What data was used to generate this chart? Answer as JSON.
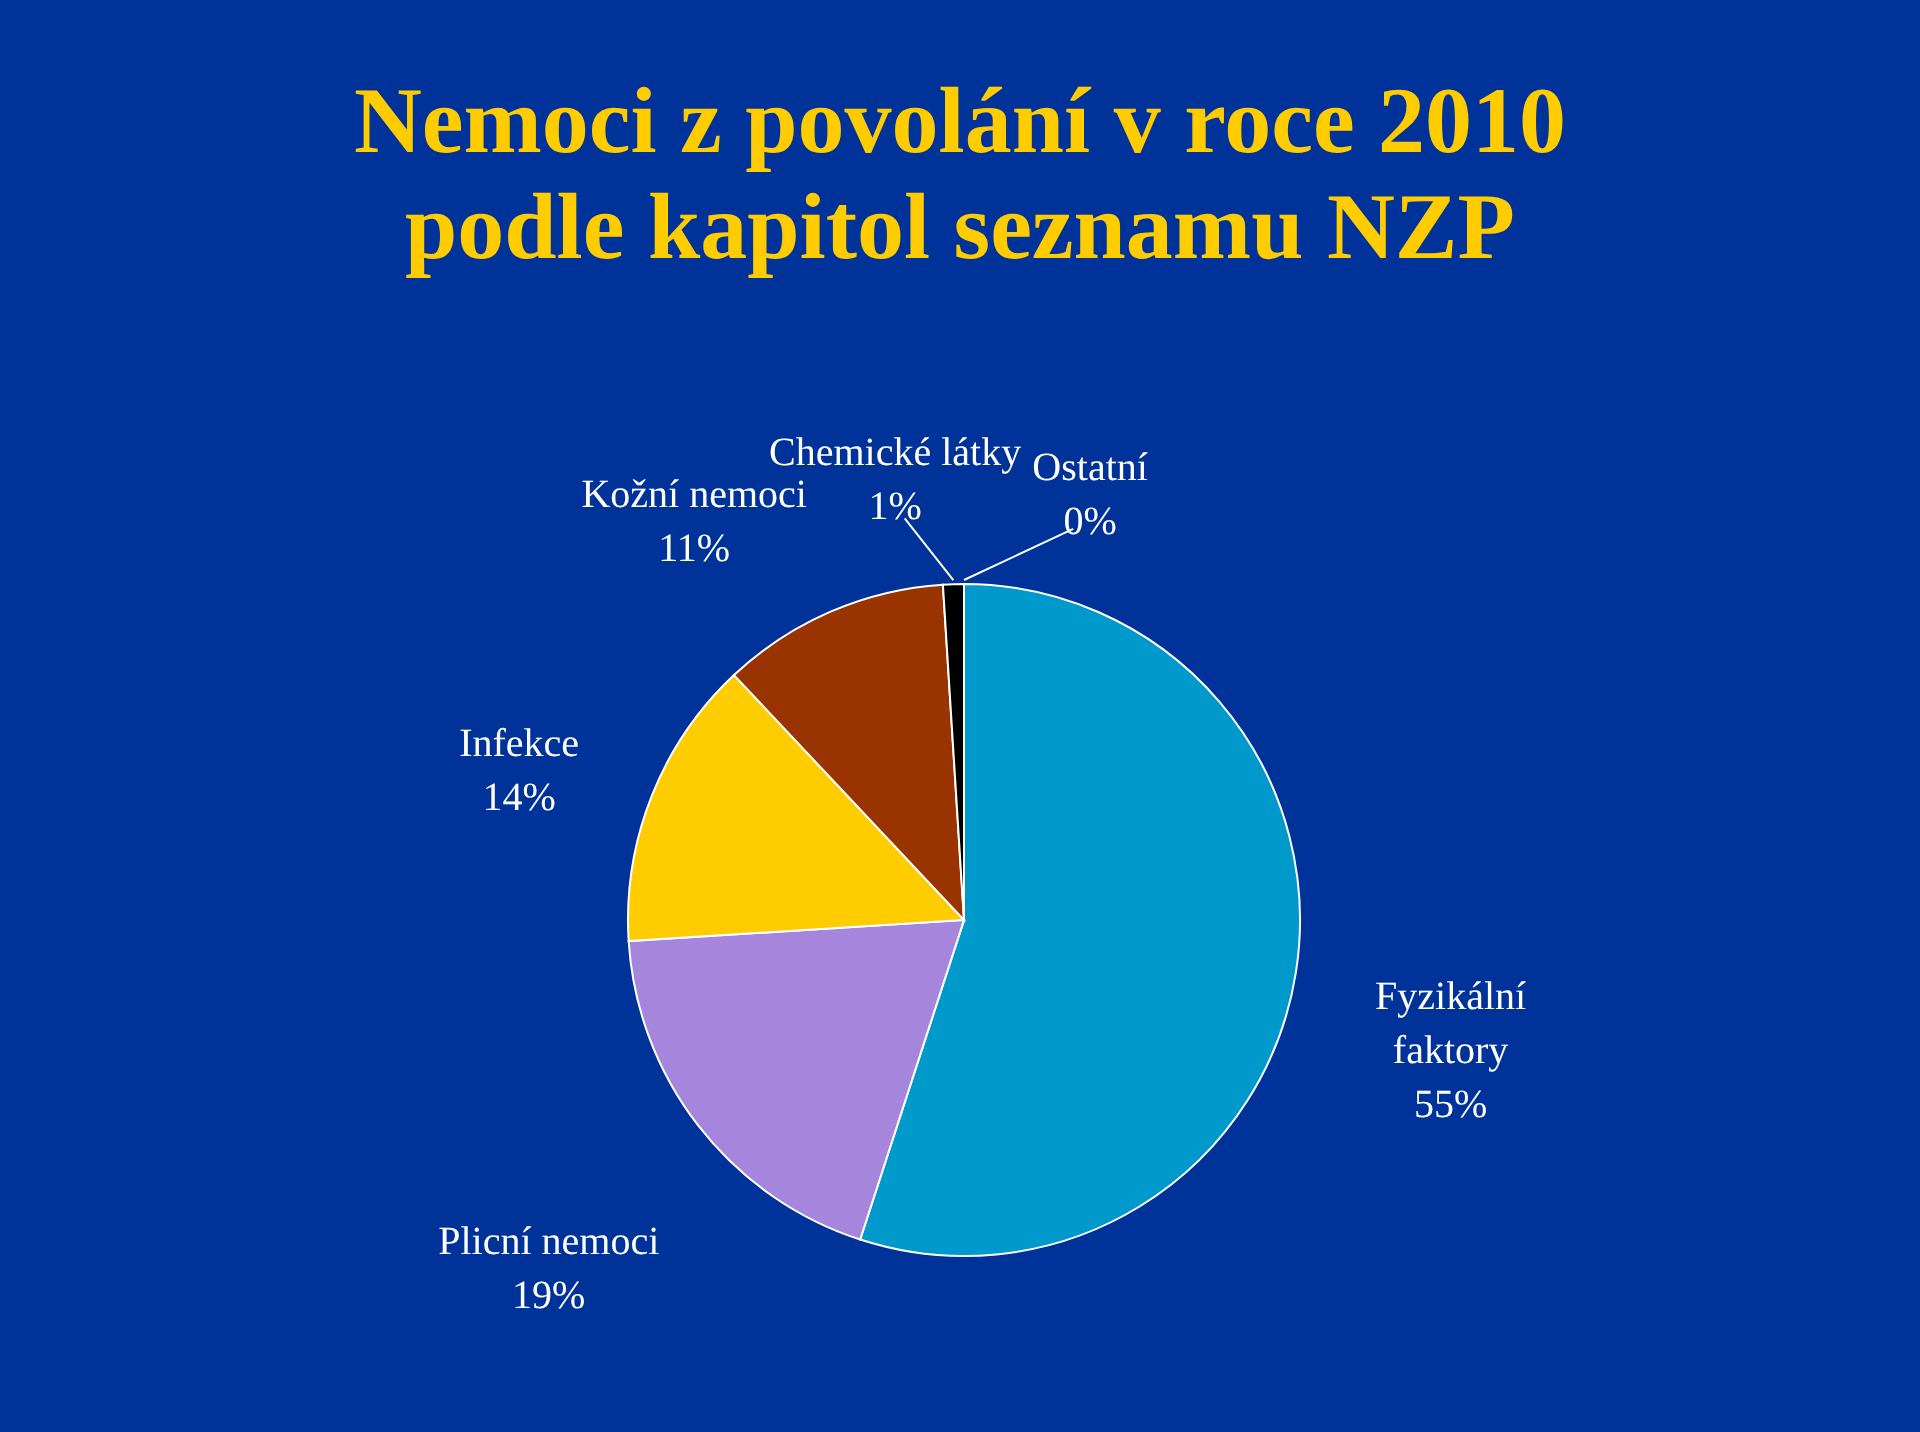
{
  "chart_data": {
    "type": "pie",
    "title": "Nemoci z povolání v roce 2010 podle kapitol seznamu NZP",
    "categories": [
      "Fyzikální faktory",
      "Plicní nemoci",
      "Infekce",
      "Kožní nemoci",
      "Chemické látky",
      "Ostatní"
    ],
    "values": [
      55,
      19,
      14,
      11,
      1,
      0
    ],
    "colors": [
      "#0099cc",
      "#a586dc",
      "#ffcc00",
      "#993300",
      "#000000",
      "#ffffff"
    ],
    "value_labels": [
      "55%",
      "19%",
      "14%",
      "11%",
      "1%",
      "0%"
    ],
    "legend": false
  }
}
